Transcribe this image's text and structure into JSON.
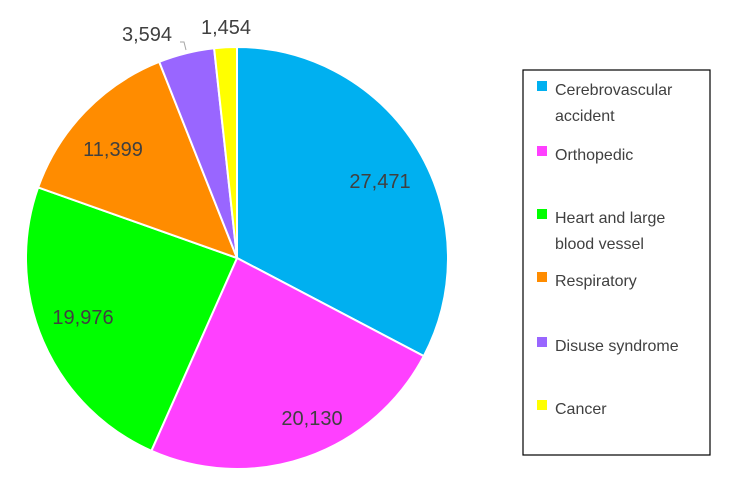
{
  "chart_data": {
    "type": "pie",
    "categories": [
      "Cerebrovascular accident",
      "Orthopedic",
      "Heart and large blood vessel",
      "Respiratory",
      "Disuse syndrome",
      "Cancer"
    ],
    "values": [
      27471,
      20130,
      19976,
      11399,
      3594,
      1454
    ],
    "data_labels": [
      "27,471",
      "20,130",
      "19,976",
      "11,399",
      "3,594",
      "1,454"
    ],
    "colors": [
      "#00B0F0",
      "#FF40FF",
      "#00FF00",
      "#FF8C00",
      "#9966FF",
      "#FFFF00"
    ],
    "legend": {
      "position": "right",
      "entries": [
        [
          "Cerebrovascular",
          "accident"
        ],
        [
          "Orthopedic"
        ],
        [
          "Heart and large",
          "blood vessel"
        ],
        [
          "Respiratory"
        ],
        [
          "Disuse syndrome"
        ],
        [
          "Cancer"
        ]
      ]
    },
    "start_angle_deg": 0,
    "direction": "clockwise"
  }
}
